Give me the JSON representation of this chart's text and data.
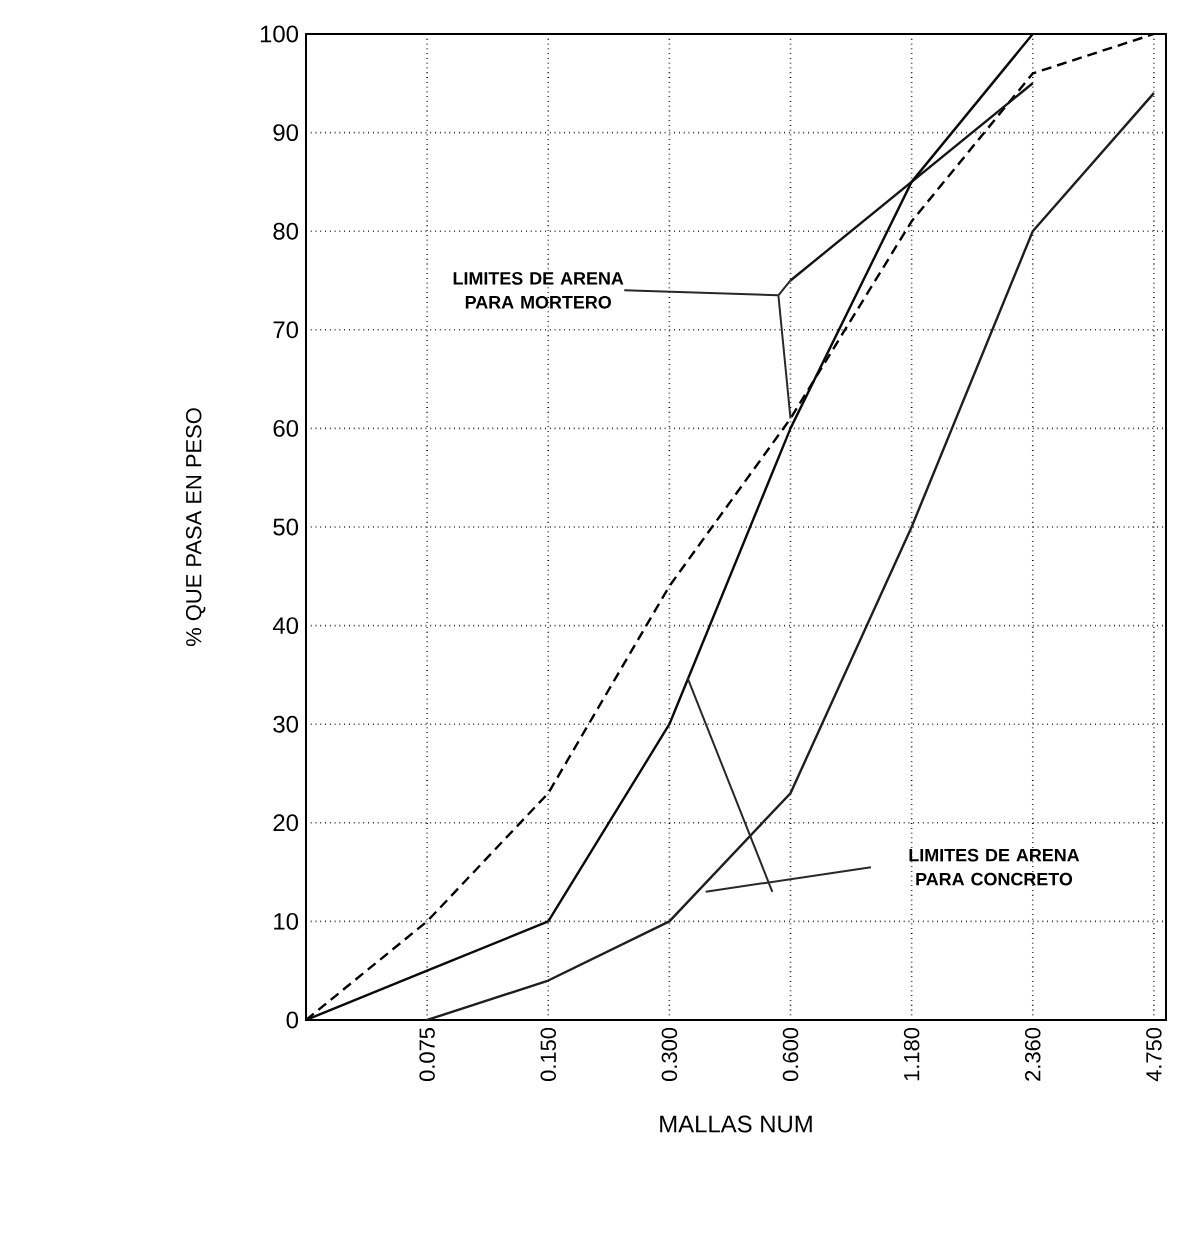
{
  "chart_data": {
    "type": "line",
    "xlabel": "MALLAS NUM",
    "ylabel": "% QUE PASA EN PESO",
    "categories": [
      null,
      "0.075",
      "0.150",
      "0.300",
      "0.600",
      "1.180",
      "2.360",
      "4.750"
    ],
    "series": [
      {
        "color": "#000000",
        "line_style": "dashed",
        "values": [
          0,
          10,
          23,
          44,
          61,
          81,
          96,
          100
        ]
      },
      {
        "color": "#141414",
        "line_style": "solid",
        "values": [
          null,
          null,
          null,
          null,
          75,
          85,
          95,
          null
        ]
      },
      {
        "color": "#0a0a0a",
        "line_style": "solid",
        "values": [
          0,
          5,
          10,
          30,
          60,
          85,
          100,
          null
        ]
      },
      {
        "color": "#1e1e1e",
        "line_style": "solid",
        "values": [
          null,
          0,
          4,
          10,
          23,
          50,
          80,
          94
        ]
      }
    ],
    "ylim": [
      0,
      100
    ],
    "yticks": [
      0,
      10,
      20,
      30,
      40,
      50,
      60,
      70,
      80,
      90,
      100
    ],
    "grid": true,
    "marker": "none",
    "annotations": [
      {
        "text": "LIMITES DE ARENA PARA MORTERO",
        "x": "0.600",
        "y": 61
      },
      "LIMITES DE ARENA PARA CONCRETO"
    ]
  }
}
